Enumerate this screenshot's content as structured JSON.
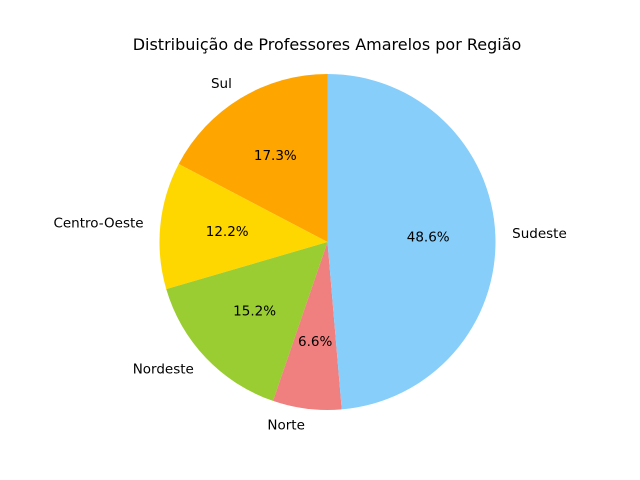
{
  "chart_data": {
    "type": "pie",
    "title": "Distribuição de Professores Amarelos por Região",
    "start_angle_deg": 90,
    "direction": "counterclockwise",
    "slices": [
      {
        "label": "Sul",
        "value": 17.3,
        "pct_label": "17.3%",
        "color": "#FFA500"
      },
      {
        "label": "Centro-Oeste",
        "value": 12.2,
        "pct_label": "12.2%",
        "color": "#FFD700"
      },
      {
        "label": "Nordeste",
        "value": 15.2,
        "pct_label": "15.2%",
        "color": "#9ACD32"
      },
      {
        "label": "Norte",
        "value": 6.6,
        "pct_label": "6.6%",
        "color": "#F08080"
      },
      {
        "label": "Sudeste",
        "value": 48.6,
        "pct_label": "48.6%",
        "color": "#87CEFA"
      }
    ]
  }
}
